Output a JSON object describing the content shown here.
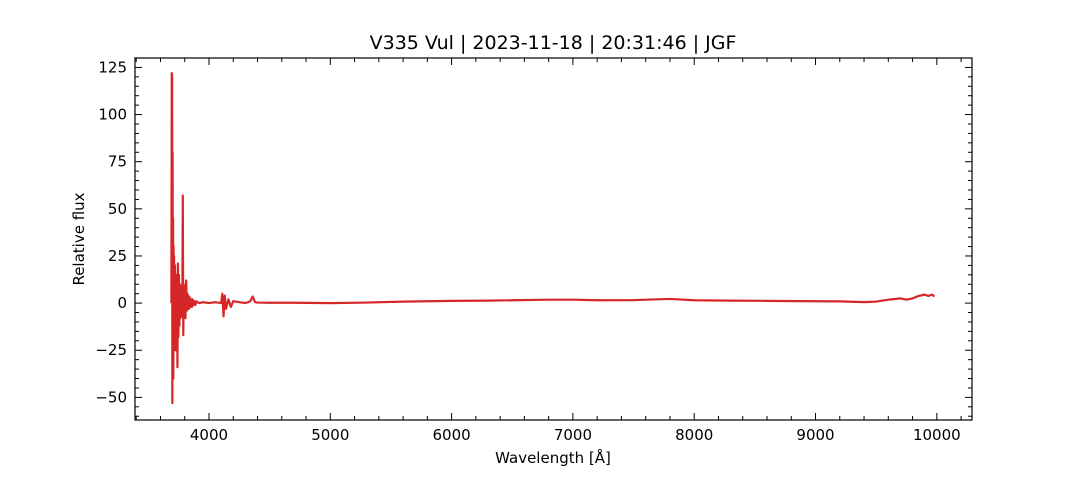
{
  "chart_data": {
    "type": "line",
    "title": "V335 Vul | 2023-11-18 | 20:31:46 | JGF",
    "xlabel": "Wavelength [Å]",
    "ylabel": "Relative flux",
    "xlim": [
      3390,
      10290
    ],
    "ylim": [
      -62,
      130
    ],
    "x_ticks": [
      4000,
      5000,
      6000,
      7000,
      8000,
      9000,
      10000
    ],
    "y_ticks": [
      -50,
      -25,
      0,
      25,
      50,
      75,
      100,
      125
    ],
    "grid": false,
    "legend": "none",
    "series": [
      {
        "color": "#d62728",
        "x": [
          3690,
          3693,
          3696,
          3698,
          3700,
          3702,
          3704,
          3706,
          3708,
          3710,
          3712,
          3716,
          3720,
          3724,
          3728,
          3732,
          3736,
          3740,
          3744,
          3748,
          3752,
          3756,
          3760,
          3764,
          3768,
          3772,
          3776,
          3780,
          3784,
          3788,
          3792,
          3796,
          3800,
          3806,
          3812,
          3818,
          3822,
          3826,
          3830,
          3836,
          3842,
          3848,
          3854,
          3860,
          3866,
          3872,
          3880,
          3888,
          3896,
          3905,
          3920,
          3950,
          4000,
          4050,
          4100,
          4110,
          4120,
          4130,
          4140,
          4160,
          4180,
          4200,
          4250,
          4300,
          4340,
          4360,
          4380,
          4400,
          4500,
          4700,
          5000,
          5300,
          5600,
          5800,
          6000,
          6300,
          6500,
          6800,
          7000,
          7200,
          7500,
          7800,
          8000,
          8300,
          8600,
          9000,
          9200,
          9400,
          9500,
          9600,
          9700,
          9750,
          9800,
          9850,
          9900,
          9930,
          9960,
          9980
        ],
        "values": [
          0,
          122,
          120,
          -53,
          80,
          -30,
          45,
          -40,
          30,
          -20,
          25,
          -15,
          20,
          -25,
          15,
          -10,
          12,
          -34,
          21,
          -18,
          15,
          -12,
          10,
          -8,
          9,
          -7,
          8,
          -6,
          57,
          -17,
          10,
          -5,
          6,
          -8,
          12,
          -4,
          5,
          -3,
          4,
          -3,
          3,
          -2,
          2,
          -2,
          2,
          -1,
          1,
          -1,
          1,
          0.5,
          0,
          0.5,
          0,
          0.5,
          0,
          5,
          -7,
          4,
          -3,
          2,
          -2,
          1,
          0.5,
          0,
          1,
          3.5,
          0.5,
          0.3,
          0.2,
          0.2,
          0,
          0.3,
          0.8,
          1,
          1.2,
          1.3,
          1.5,
          1.8,
          1.8,
          1.5,
          1.6,
          2.2,
          1.5,
          1.3,
          1.2,
          1.0,
          0.9,
          0.5,
          0.8,
          1.8,
          2.5,
          1.8,
          2.5,
          3.8,
          4.5,
          3.8,
          4.5,
          3.5
        ]
      }
    ]
  }
}
